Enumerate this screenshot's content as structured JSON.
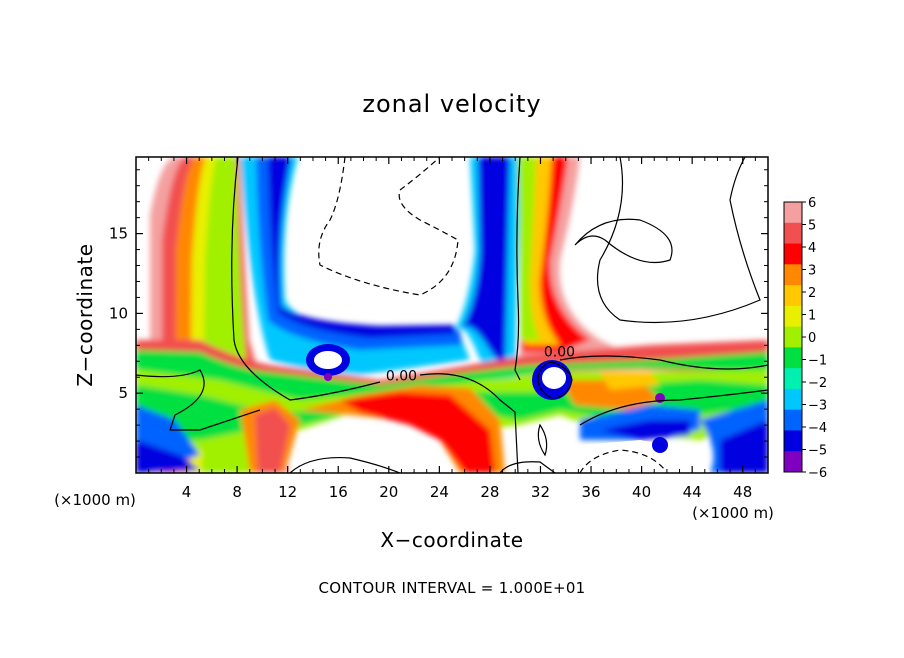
{
  "chart_data": {
    "type": "heatmap",
    "title": "zonal velocity",
    "xlabel": "X−coordinate",
    "ylabel": "Z−coordinate",
    "x_unit_label": "(×1000 m)",
    "y_unit_label": "(×1000 m)",
    "xlim": [
      0,
      50
    ],
    "ylim": [
      0,
      19.8
    ],
    "x_ticks": [
      4,
      8,
      12,
      16,
      20,
      24,
      28,
      32,
      36,
      40,
      44,
      48
    ],
    "y_ticks": [
      5,
      10,
      15
    ],
    "colorbar": {
      "levels": [
        6,
        5,
        4,
        3,
        2,
        1,
        0,
        -1,
        -2,
        -3,
        -4,
        -5,
        -6
      ],
      "labels": [
        "6",
        "5",
        "4",
        "3",
        "2",
        "1",
        "0",
        "−1",
        "−2",
        "−3",
        "−4",
        "−5",
        "−6"
      ],
      "colors": [
        "#f4a0a0",
        "#f25050",
        "#ff0000",
        "#ff8800",
        "#ffc800",
        "#e8f000",
        "#a0f000",
        "#00e040",
        "#00f0b0",
        "#00c8ff",
        "#0064ff",
        "#0000e0",
        "#8000c0"
      ]
    },
    "contour_labels": [
      {
        "text": "0.00",
        "x": 21,
        "y": 5.8
      },
      {
        "text": "0.00",
        "x": 33.5,
        "y": 7.3
      }
    ],
    "regions": [
      {
        "note": "strong positive plume",
        "x": [
          3,
          10
        ],
        "y": [
          0,
          19.8
        ],
        "peak": 6
      },
      {
        "note": "strong negative band",
        "x": [
          8,
          12
        ],
        "y": [
          8,
          19.8
        ],
        "peak": -6
      },
      {
        "note": "negative column",
        "x": [
          27,
          30
        ],
        "y": [
          4,
          19.8
        ],
        "peak": -5
      },
      {
        "note": "positive column",
        "x": [
          30,
          34
        ],
        "y": [
          7,
          19.8
        ],
        "peak": 5
      },
      {
        "note": "positive layer",
        "x": [
          0,
          50
        ],
        "y": [
          6,
          8
        ],
        "peak": 5
      },
      {
        "note": "negative eddy",
        "x": [
          14,
          17
        ],
        "y": [
          6,
          8
        ],
        "peak": -6
      },
      {
        "note": "negative eddy",
        "x": [
          32,
          35
        ],
        "y": [
          5,
          8
        ],
        "peak": -6
      },
      {
        "note": "positive lower patch",
        "x": [
          18,
          29
        ],
        "y": [
          1,
          5
        ],
        "peak": 5
      }
    ],
    "grid": false,
    "legend": "right"
  },
  "footer": {
    "contour_interval": "CONTOUR INTERVAL = 1.000E+01"
  }
}
